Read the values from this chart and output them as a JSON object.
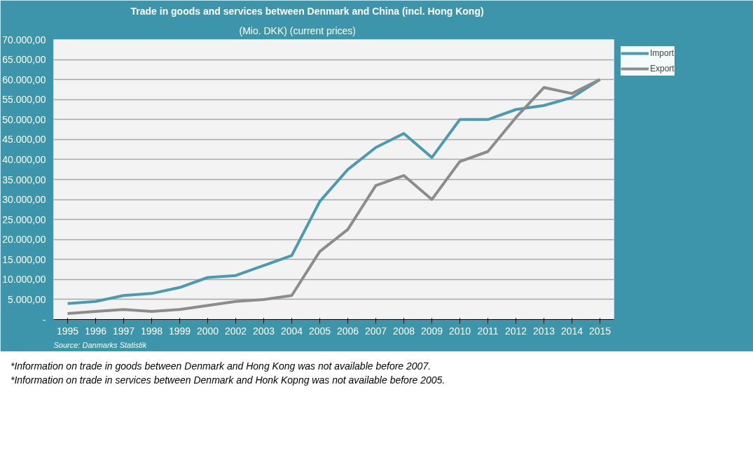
{
  "chart_data": {
    "type": "line",
    "title": "Trade in goods and services between Denmark and China (incl. Hong Kong)",
    "subtitle": "(Mio. DKK) (current prices)",
    "categories": [
      "1995",
      "1996",
      "1997",
      "1998",
      "1999",
      "2000",
      "2002",
      "2003",
      "2004",
      "2005",
      "2006",
      "2007",
      "2008",
      "2009",
      "2010",
      "2011",
      "2012",
      "2013",
      "2014",
      "2015"
    ],
    "series": [
      {
        "name": "Import",
        "color": "#4a9bb0",
        "values": [
          4000,
          4500,
          6000,
          6500,
          8000,
          10500,
          11000,
          13500,
          16000,
          29500,
          37500,
          43000,
          46500,
          40500,
          50000,
          50000,
          52500,
          53500,
          55500,
          60000
        ]
      },
      {
        "name": "Export",
        "color": "#8c8c8c",
        "values": [
          1500,
          2000,
          2500,
          2000,
          2500,
          3500,
          4500,
          5000,
          6000,
          17000,
          22500,
          33500,
          36000,
          30000,
          39500,
          42000,
          50500,
          58000,
          56500,
          60000
        ]
      }
    ],
    "ylim": [
      0,
      70000
    ],
    "yticks": [
      {
        "value": 0,
        "label": "-"
      },
      {
        "value": 5000,
        "label": "5.000,00"
      },
      {
        "value": 10000,
        "label": "10.000,00"
      },
      {
        "value": 15000,
        "label": "15.000,00"
      },
      {
        "value": 20000,
        "label": "20.000,00"
      },
      {
        "value": 25000,
        "label": "25.000,00"
      },
      {
        "value": 30000,
        "label": "30.000,00"
      },
      {
        "value": 35000,
        "label": "35.000,00"
      },
      {
        "value": 40000,
        "label": "40.000,00"
      },
      {
        "value": 45000,
        "label": "45.000,00"
      },
      {
        "value": 50000,
        "label": "50.000,00"
      },
      {
        "value": 55000,
        "label": "55.000,00"
      },
      {
        "value": 60000,
        "label": "60.000,00"
      },
      {
        "value": 65000,
        "label": "65.000,00"
      },
      {
        "value": 70000,
        "label": "70.000,00"
      }
    ],
    "grid": "y",
    "legend": "top right",
    "marker": "none",
    "line_style": "solid",
    "annotations": [
      "Source: Danmarks Statistik",
      "*Information on trade in goods between Denmark and Hong Kong was not available before 2007.",
      "*Information on trade in services between Denmark and Honk Kopng was not available before 2005."
    ]
  }
}
